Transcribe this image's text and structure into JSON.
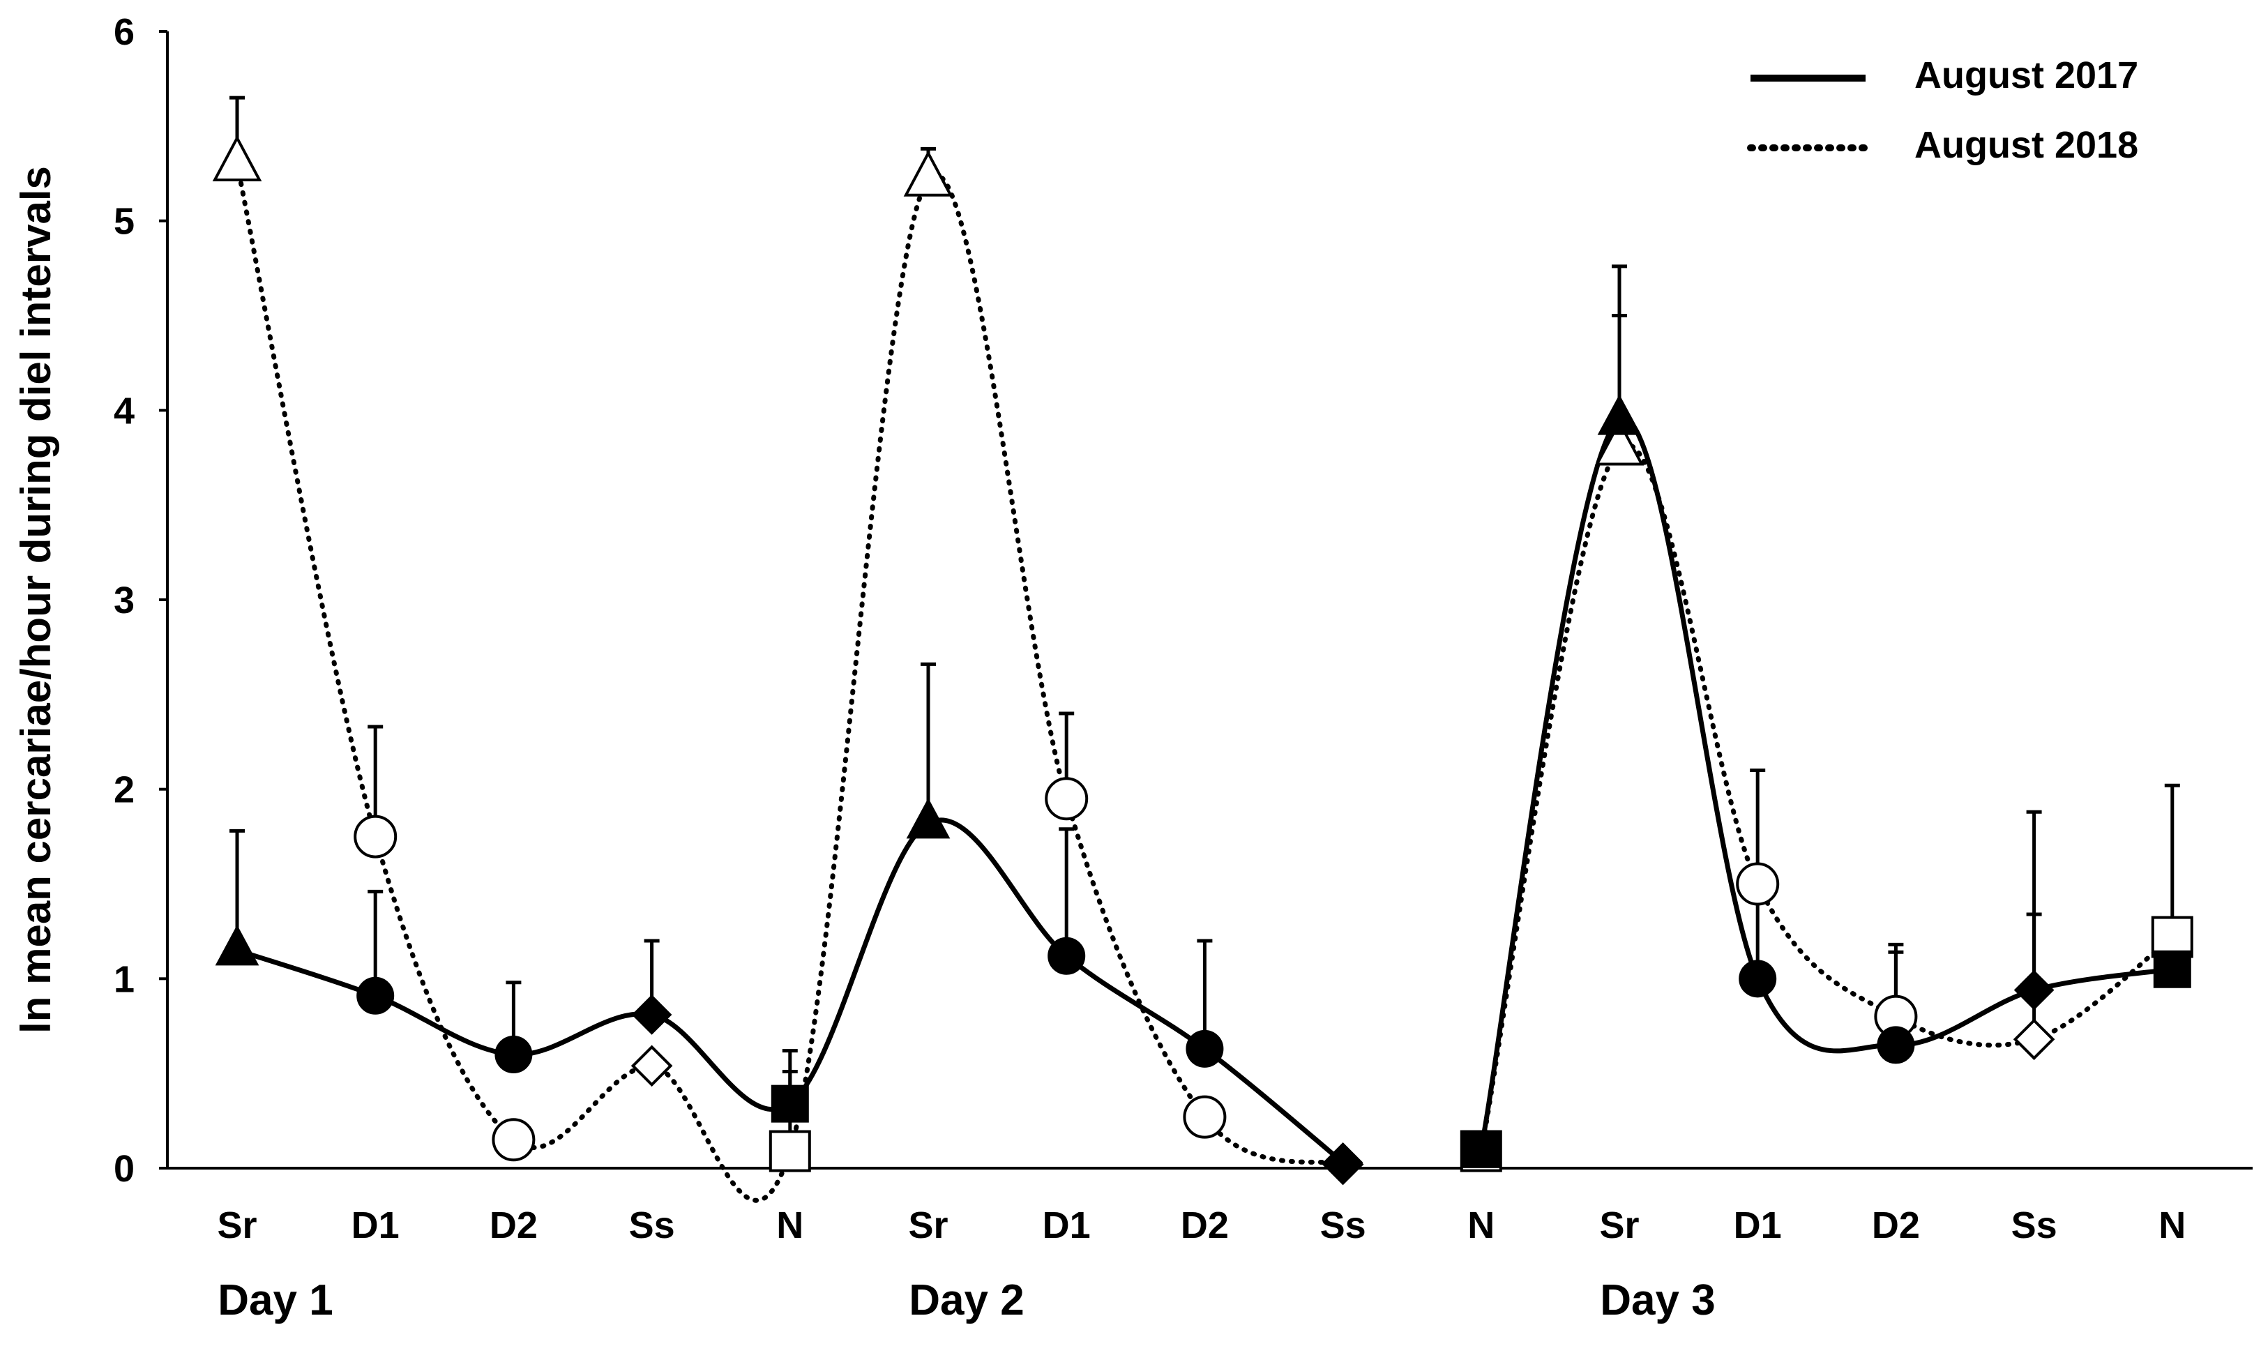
{
  "chart_data": {
    "type": "line",
    "ylabel": "ln mean cercariae/hour during diel intervals",
    "ylim": [
      0,
      6
    ],
    "yticks": [
      "0",
      "1",
      "2",
      "3",
      "4",
      "5",
      "6"
    ],
    "categories": [
      "Sr",
      "D1",
      "D2",
      "Ss",
      "N",
      "Sr",
      "D1",
      "D2",
      "Ss",
      "N",
      "Sr",
      "D1",
      "D2",
      "Ss",
      "N"
    ],
    "marker_by_category": [
      "triangle",
      "circle",
      "circle",
      "diamond",
      "square",
      "triangle",
      "circle",
      "circle",
      "diamond",
      "square",
      "triangle",
      "circle",
      "circle",
      "diamond",
      "square"
    ],
    "day_groups": [
      {
        "label": "Day 1",
        "start_index": 0
      },
      {
        "label": "Day 2",
        "start_index": 5
      },
      {
        "label": "Day 3",
        "start_index": 10
      }
    ],
    "series": [
      {
        "name": "August 2017",
        "style": "solid",
        "marker_fill": "filled",
        "segments": [
          [
            0,
            8
          ],
          [
            9,
            14
          ]
        ],
        "values": [
          1.15,
          0.91,
          0.6,
          0.81,
          0.34,
          1.82,
          1.12,
          0.63,
          0.03,
          0.1,
          3.95,
          1.0,
          0.65,
          0.94,
          1.05
        ],
        "error_upper": [
          1.78,
          1.46,
          0.98,
          1.2,
          0.62,
          2.66,
          1.79,
          1.2,
          null,
          null,
          4.76,
          2.1,
          1.14,
          1.88,
          null
        ]
      },
      {
        "name": "August 2018",
        "style": "dotted",
        "marker_fill": "open",
        "segments": [
          [
            0,
            8
          ],
          [
            9,
            14
          ]
        ],
        "values": [
          5.3,
          1.75,
          0.15,
          0.54,
          0.09,
          5.22,
          1.95,
          0.27,
          0.02,
          0.09,
          3.8,
          1.5,
          0.8,
          0.68,
          1.22
        ],
        "error_upper": [
          5.65,
          2.33,
          null,
          null,
          0.51,
          5.38,
          2.4,
          null,
          null,
          null,
          4.5,
          null,
          1.18,
          1.34,
          2.02
        ]
      }
    ],
    "legend": [
      {
        "label": "August 2017",
        "style": "solid"
      },
      {
        "label": "August 2018",
        "style": "dotted"
      }
    ],
    "legend_position": "top-right"
  }
}
